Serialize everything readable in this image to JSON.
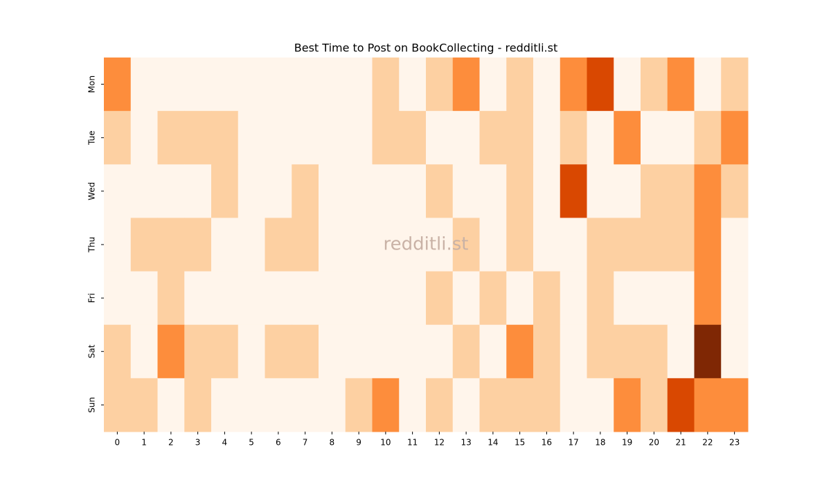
{
  "chart_data": {
    "type": "heatmap",
    "title": "Best Time to Post on BookCollecting - redditli.st",
    "watermark": "redditli.st",
    "x": [
      0,
      1,
      2,
      3,
      4,
      5,
      6,
      7,
      8,
      9,
      10,
      11,
      12,
      13,
      14,
      15,
      16,
      17,
      18,
      19,
      20,
      21,
      22,
      23
    ],
    "y": [
      "Mon",
      "Tue",
      "Wed",
      "Thu",
      "Fri",
      "Sat",
      "Sun"
    ],
    "values": [
      [
        2,
        0,
        0,
        0,
        0,
        0,
        0,
        0,
        0,
        0,
        1,
        0,
        1,
        2,
        0,
        1,
        0,
        2,
        3,
        0,
        1,
        2,
        0,
        1
      ],
      [
        1,
        0,
        1,
        1,
        1,
        0,
        0,
        0,
        0,
        0,
        1,
        1,
        0,
        0,
        1,
        1,
        0,
        1,
        0,
        2,
        0,
        0,
        1,
        2
      ],
      [
        0,
        0,
        0,
        0,
        1,
        0,
        0,
        1,
        0,
        0,
        0,
        0,
        1,
        0,
        0,
        1,
        0,
        3,
        0,
        0,
        1,
        1,
        2,
        1
      ],
      [
        0,
        1,
        1,
        1,
        0,
        0,
        1,
        1,
        0,
        0,
        0,
        0,
        0,
        1,
        0,
        1,
        0,
        0,
        1,
        1,
        1,
        1,
        2,
        0
      ],
      [
        0,
        0,
        1,
        0,
        0,
        0,
        0,
        0,
        0,
        0,
        0,
        0,
        1,
        0,
        1,
        0,
        1,
        0,
        1,
        0,
        0,
        0,
        2,
        0
      ],
      [
        1,
        0,
        2,
        1,
        1,
        0,
        1,
        1,
        0,
        0,
        0,
        0,
        0,
        1,
        0,
        2,
        1,
        0,
        1,
        1,
        1,
        0,
        4,
        0
      ],
      [
        1,
        1,
        0,
        1,
        0,
        0,
        0,
        0,
        0,
        1,
        2,
        0,
        1,
        0,
        1,
        1,
        1,
        0,
        0,
        2,
        1,
        3,
        2,
        2
      ]
    ],
    "vlim": [
      0,
      4
    ],
    "colors": [
      "#fff5eb",
      "#fdd0a2",
      "#fd8d3c",
      "#d94801",
      "#7f2704"
    ]
  }
}
